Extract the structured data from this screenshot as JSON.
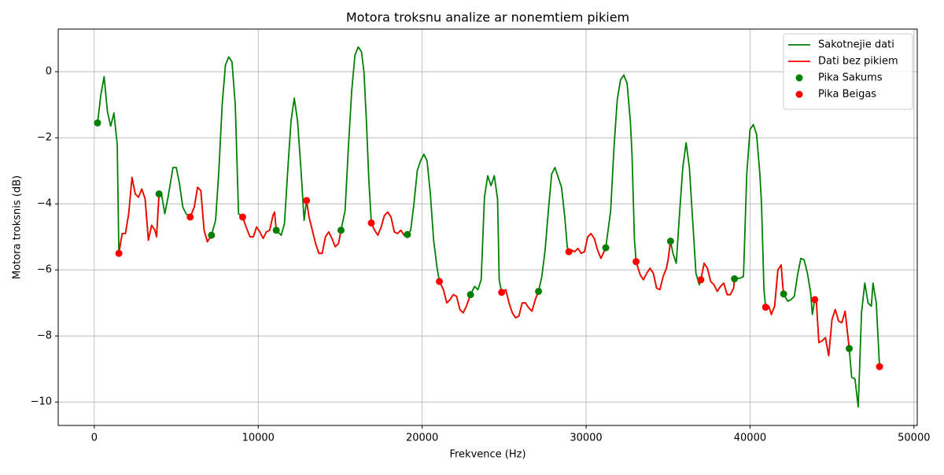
{
  "chart_data": {
    "type": "line",
    "title": "Motora troksnu analize ar nonemtiem pikiem",
    "x_label": "Frekvence (Hz)",
    "y_label": "Motora troksnis (dB)",
    "xlim": [
      -2200,
      50200
    ],
    "ylim": [
      -10.71,
      1.29
    ],
    "xticks": [
      0,
      10000,
      20000,
      30000,
      40000,
      50000
    ],
    "yticks": [
      {
        "value": -10,
        "label": "−10"
      },
      {
        "value": -8,
        "label": "−8"
      },
      {
        "value": -6,
        "label": "−6"
      },
      {
        "value": -4,
        "label": "−4"
      },
      {
        "value": -2,
        "label": "−2"
      },
      0
    ],
    "grid": true,
    "legend": "upper right",
    "x": [
      200,
      400,
      600,
      800,
      1000,
      1200,
      1400,
      1500,
      1700,
      1900,
      2100,
      2300,
      2500,
      2700,
      2900,
      3100,
      3300,
      3500,
      3700,
      3800,
      3950,
      4100,
      4300,
      4500,
      4800,
      5000,
      5200,
      5400,
      5600,
      5850,
      6100,
      6300,
      6500,
      6700,
      6900,
      7150,
      7400,
      7600,
      7800,
      8000,
      8200,
      8400,
      8600,
      8800,
      9050,
      9300,
      9500,
      9700,
      9900,
      10100,
      10300,
      10500,
      10700,
      10900,
      11000,
      11100,
      11400,
      11600,
      11800,
      12000,
      12200,
      12400,
      12600,
      12800,
      12950,
      13100,
      13300,
      13500,
      13700,
      13900,
      14100,
      14300,
      14500,
      14700,
      14900,
      15050,
      15300,
      15500,
      15700,
      15900,
      16100,
      16300,
      16450,
      16600,
      16750,
      16900,
      17100,
      17300,
      17500,
      17700,
      17900,
      18100,
      18300,
      18500,
      18700,
      18900,
      19100,
      19300,
      19500,
      19700,
      19900,
      20100,
      20300,
      20500,
      20700,
      20900,
      21050,
      21300,
      21500,
      21700,
      21900,
      22100,
      22300,
      22500,
      22700,
      22950,
      23200,
      23400,
      23600,
      23800,
      24000,
      24200,
      24400,
      24600,
      24700,
      24850,
      25100,
      25300,
      25500,
      25700,
      25900,
      26100,
      26300,
      26500,
      26700,
      26900,
      27100,
      27300,
      27500,
      27700,
      27900,
      28100,
      28300,
      28500,
      28700,
      28850,
      28950,
      29100,
      29300,
      29500,
      29700,
      29900,
      30100,
      30300,
      30500,
      30700,
      30900,
      31000,
      31200,
      31500,
      31700,
      31900,
      32100,
      32300,
      32500,
      32700,
      32800,
      32950,
      33050,
      33300,
      33500,
      33700,
      33900,
      34100,
      34300,
      34500,
      34700,
      34900,
      35000,
      35150,
      35300,
      35500,
      35700,
      35900,
      36100,
      36300,
      36500,
      36700,
      36900,
      37000,
      37200,
      37400,
      37600,
      37800,
      38000,
      38200,
      38400,
      38600,
      38800,
      39000,
      39050,
      39400,
      39600,
      39800,
      40000,
      40200,
      40400,
      40600,
      40700,
      40850,
      40950,
      41150,
      41300,
      41500,
      41700,
      41900,
      42000,
      42050,
      42300,
      42500,
      42700,
      42900,
      43100,
      43300,
      43500,
      43700,
      43800,
      43950,
      44050,
      44200,
      44400,
      44600,
      44800,
      45000,
      45200,
      45400,
      45600,
      45800,
      46050,
      46200,
      46400,
      46600,
      46800,
      47000,
      47200,
      47400,
      47500,
      47700,
      47900
    ],
    "series": [
      {
        "name": "Sakotnejie dati",
        "type": "line",
        "color": "#008000",
        "values": [
          -1.55,
          -0.7,
          -0.15,
          -1.2,
          -1.65,
          -1.25,
          -2.2,
          -5.5,
          -4.9,
          -4.9,
          -4.3,
          -3.2,
          -3.7,
          -3.8,
          -3.55,
          -3.85,
          -5.1,
          -4.65,
          -4.8,
          -5.0,
          -3.7,
          -3.7,
          -4.3,
          -3.8,
          -2.9,
          -2.9,
          -3.4,
          -4.1,
          -4.3,
          -4.4,
          -4.1,
          -3.5,
          -3.6,
          -4.8,
          -5.15,
          -4.95,
          -4.5,
          -3.0,
          -1.0,
          0.2,
          0.45,
          0.3,
          -1.0,
          -4.3,
          -4.4,
          -4.75,
          -5.0,
          -5.0,
          -4.7,
          -4.85,
          -5.05,
          -4.85,
          -4.8,
          -4.35,
          -4.25,
          -4.8,
          -4.95,
          -4.6,
          -3.0,
          -1.5,
          -0.8,
          -1.5,
          -2.9,
          -4.5,
          -3.9,
          -4.4,
          -4.8,
          -5.2,
          -5.5,
          -5.5,
          -5.0,
          -4.85,
          -5.05,
          -5.3,
          -5.2,
          -4.8,
          -4.2,
          -2.3,
          -0.6,
          0.5,
          0.75,
          0.6,
          0,
          -1.5,
          -3.3,
          -4.58,
          -4.8,
          -4.95,
          -4.7,
          -4.35,
          -4.25,
          -4.4,
          -4.85,
          -4.9,
          -4.8,
          -4.95,
          -4.93,
          -4.8,
          -4.0,
          -3.0,
          -2.7,
          -2.5,
          -2.7,
          -3.7,
          -5.1,
          -5.9,
          -6.35,
          -6.6,
          -7.0,
          -6.9,
          -6.75,
          -6.8,
          -7.2,
          -7.3,
          -7.1,
          -6.75,
          -6.5,
          -6.6,
          -6.3,
          -3.8,
          -3.15,
          -3.45,
          -3.15,
          -3.85,
          -6.3,
          -6.68,
          -6.6,
          -7.0,
          -7.3,
          -7.45,
          -7.4,
          -7.0,
          -7.0,
          -7.15,
          -7.25,
          -6.9,
          -6.65,
          -6.2,
          -5.4,
          -4.2,
          -3.1,
          -2.9,
          -3.2,
          -3.5,
          -4.4,
          -5.3,
          -5.45,
          -5.4,
          -5.45,
          -5.35,
          -5.5,
          -5.45,
          -5.0,
          -4.9,
          -5.05,
          -5.4,
          -5.65,
          -5.55,
          -5.33,
          -4.2,
          -2.3,
          -0.85,
          -0.25,
          -0.1,
          -0.35,
          -1.5,
          -2.5,
          -5.1,
          -5.75,
          -6.15,
          -6.3,
          -6.1,
          -5.95,
          -6.1,
          -6.55,
          -6.6,
          -6.2,
          -5.95,
          -5.7,
          -5.13,
          -5.5,
          -5.8,
          -4.3,
          -2.9,
          -2.15,
          -2.9,
          -4.5,
          -6.1,
          -6.45,
          -6.3,
          -5.8,
          -5.95,
          -6.35,
          -6.45,
          -6.65,
          -6.5,
          -6.4,
          -6.75,
          -6.75,
          -6.55,
          -6.27,
          -6.25,
          -6.2,
          -3.1,
          -1.75,
          -1.6,
          -1.9,
          -3.1,
          -4.0,
          -6.6,
          -7.13,
          -7.1,
          -7.35,
          -7.1,
          -6.0,
          -5.85,
          -6.5,
          -6.73,
          -6.95,
          -6.9,
          -6.8,
          -6.15,
          -5.65,
          -5.7,
          -6.1,
          -6.7,
          -7.35,
          -6.9,
          -7.0,
          -8.2,
          -8.15,
          -8.05,
          -8.6,
          -7.5,
          -7.2,
          -7.55,
          -7.6,
          -7.25,
          -8.38,
          -9.25,
          -9.3,
          -10.15,
          -7.3,
          -6.4,
          -7.0,
          -7.1,
          -6.4,
          -7.0,
          -8.93
        ]
      },
      {
        "name": "Dati bez pikiem",
        "type": "line",
        "color": "#ff0000",
        "values": [
          null,
          null,
          null,
          null,
          null,
          null,
          null,
          -5.5,
          -4.9,
          -4.9,
          -4.3,
          -3.2,
          -3.7,
          -3.8,
          -3.55,
          -3.85,
          -5.1,
          -4.65,
          -4.8,
          -5.0,
          -3.7,
          null,
          null,
          null,
          null,
          null,
          null,
          null,
          null,
          -4.4,
          -4.1,
          -3.5,
          -3.6,
          -4.8,
          -5.15,
          -4.95,
          null,
          null,
          null,
          null,
          null,
          null,
          null,
          null,
          -4.4,
          -4.75,
          -5.0,
          -5.0,
          -4.7,
          -4.85,
          -5.05,
          -4.85,
          -4.8,
          -4.35,
          -4.25,
          -4.8,
          null,
          null,
          null,
          null,
          null,
          null,
          null,
          null,
          -3.9,
          -4.4,
          -4.8,
          -5.2,
          -5.5,
          -5.5,
          -5.0,
          -4.85,
          -5.05,
          -5.3,
          -5.2,
          -4.8,
          null,
          null,
          null,
          null,
          null,
          null,
          null,
          null,
          null,
          -4.58,
          -4.8,
          -4.95,
          -4.7,
          -4.35,
          -4.25,
          -4.4,
          -4.85,
          -4.9,
          -4.8,
          -4.95,
          -4.93,
          null,
          null,
          null,
          null,
          null,
          null,
          null,
          null,
          null,
          -6.35,
          -6.6,
          -7.0,
          -6.9,
          -6.75,
          -6.8,
          -7.2,
          -7.3,
          -7.1,
          -6.75,
          null,
          null,
          null,
          null,
          null,
          null,
          null,
          null,
          null,
          -6.68,
          -6.6,
          -7.0,
          -7.3,
          -7.45,
          -7.4,
          -7.0,
          -7.0,
          -7.15,
          -7.25,
          -6.9,
          -6.65,
          null,
          null,
          null,
          null,
          null,
          null,
          null,
          null,
          null,
          -5.45,
          -5.4,
          -5.45,
          -5.35,
          -5.5,
          -5.45,
          -5.0,
          -4.9,
          -5.05,
          -5.4,
          -5.65,
          -5.55,
          -5.33,
          null,
          null,
          null,
          null,
          null,
          null,
          null,
          null,
          null,
          -5.75,
          -6.15,
          -6.3,
          -6.1,
          -5.95,
          -6.1,
          -6.55,
          -6.6,
          -6.2,
          -5.95,
          -5.7,
          -5.13,
          null,
          null,
          null,
          null,
          null,
          null,
          null,
          null,
          null,
          -6.3,
          -5.8,
          -5.95,
          -6.35,
          -6.45,
          -6.65,
          -6.5,
          -6.4,
          -6.75,
          -6.75,
          -6.55,
          -6.27,
          null,
          null,
          null,
          null,
          null,
          null,
          null,
          null,
          null,
          -7.13,
          -7.1,
          -7.35,
          -7.1,
          -6.0,
          -5.85,
          -6.5,
          -6.73,
          null,
          null,
          null,
          null,
          null,
          null,
          null,
          null,
          null,
          -6.9,
          -7.0,
          -8.2,
          -8.15,
          -8.05,
          -8.6,
          -7.5,
          -7.2,
          -7.55,
          -7.6,
          -7.25,
          -8.38,
          null,
          null,
          null,
          null,
          null,
          null,
          null,
          null,
          null,
          -8.93
        ]
      },
      {
        "name": "Pika Sakums",
        "type": "scatter",
        "color": "#008000",
        "x": [
          200,
          3950,
          7150,
          11100,
          15050,
          19100,
          22950,
          27100,
          31200,
          35150,
          39050,
          42050,
          46050
        ],
        "values": [
          -1.55,
          -3.7,
          -4.95,
          -4.8,
          -4.8,
          -4.93,
          -6.75,
          -6.65,
          -5.33,
          -5.13,
          -6.27,
          -6.73,
          -8.38
        ]
      },
      {
        "name": "Pika Beigas",
        "type": "scatter",
        "color": "#ff0000",
        "x": [
          1500,
          5850,
          9050,
          12950,
          16900,
          21050,
          24850,
          28950,
          33050,
          37000,
          40950,
          43950,
          47900
        ],
        "values": [
          -5.5,
          -4.4,
          -4.4,
          -3.9,
          -4.58,
          -6.35,
          -6.68,
          -5.45,
          -5.75,
          -6.3,
          -7.13,
          -6.9,
          -8.93
        ]
      }
    ]
  }
}
